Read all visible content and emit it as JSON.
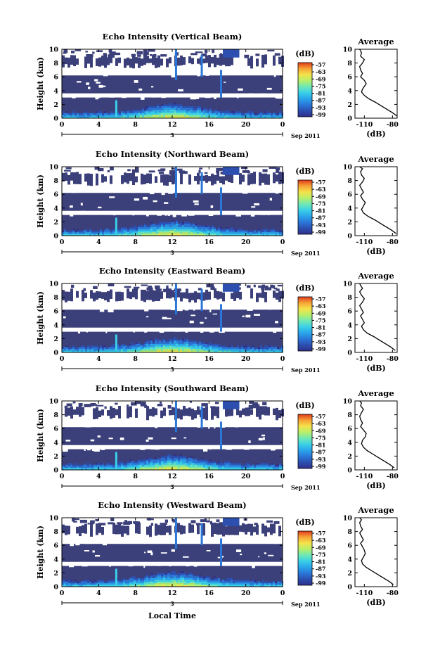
{
  "figure": {
    "x_axis_title": "Local Time",
    "colorbar_ticks": [
      "-57",
      "-63",
      "-69",
      "-75",
      "-81",
      "-87",
      "-93",
      "-99"
    ],
    "colorbar_unit": "(dB)",
    "colors": {
      "fill_dark": "#3b3f7a",
      "background": "#ffffff",
      "colormap": [
        "#30308a",
        "#2c4fb0",
        "#2a77d8",
        "#2aa5ea",
        "#39d0e8",
        "#6fe8b5",
        "#b7ef6b",
        "#f4e34a",
        "#f7a436",
        "#e23a1c"
      ]
    }
  },
  "chart_data": [
    {
      "type": "heatmap",
      "title": "Echo Intensity (Vertical Beam)",
      "ylabel": "Height (km)",
      "x_ticks": [
        "0",
        "4",
        "8",
        "12",
        "16",
        "20",
        "0"
      ],
      "y_ticks": [
        "0",
        "2",
        "4",
        "6",
        "8",
        "10"
      ],
      "xlim": [
        0,
        24
      ],
      "ylim": [
        0,
        10
      ],
      "date_tick": "3",
      "date_label": "Sep 2011",
      "clim": [
        -99,
        -57
      ],
      "profile": {
        "title": "Average",
        "xlabel": "(dB)",
        "x_ticks": [
          "-110",
          "-80"
        ],
        "y_ticks": [
          "0",
          "2",
          "4",
          "6",
          "8",
          "10"
        ],
        "xlim": [
          -120,
          -75
        ],
        "points": [
          [
            -75,
            0.3
          ],
          [
            -80,
            0.8
          ],
          [
            -86,
            1.3
          ],
          [
            -92,
            1.8
          ],
          [
            -98,
            2.3
          ],
          [
            -105,
            2.8
          ],
          [
            -110,
            3.3
          ],
          [
            -113,
            3.8
          ],
          [
            -112,
            4.2
          ],
          [
            -110,
            4.6
          ],
          [
            -108,
            5.0
          ],
          [
            -110,
            5.5
          ],
          [
            -114,
            6.0
          ],
          [
            -112,
            6.5
          ],
          [
            -114,
            7.0
          ],
          [
            -115,
            7.5
          ],
          [
            -112,
            8.0
          ],
          [
            -110,
            8.5
          ],
          [
            -114,
            9.0
          ],
          [
            -113,
            9.5
          ],
          [
            -115,
            10.0
          ]
        ]
      }
    },
    {
      "type": "heatmap",
      "title": "Echo Intensity (Northward Beam)",
      "ylabel": "Height (km)",
      "x_ticks": [
        "0",
        "4",
        "8",
        "12",
        "16",
        "20",
        "0"
      ],
      "y_ticks": [
        "0",
        "2",
        "4",
        "6",
        "8",
        "10"
      ],
      "xlim": [
        0,
        24
      ],
      "ylim": [
        0,
        10
      ],
      "date_tick": "3",
      "date_label": "Sep 2011",
      "clim": [
        -99,
        -57
      ],
      "profile": {
        "title": "Average",
        "xlabel": "(dB)",
        "x_ticks": [
          "-110",
          "-80"
        ],
        "y_ticks": [
          "0",
          "2",
          "4",
          "6",
          "8",
          "10"
        ],
        "xlim": [
          -120,
          -75
        ],
        "points": [
          [
            -76,
            0.3
          ],
          [
            -81,
            0.8
          ],
          [
            -87,
            1.3
          ],
          [
            -93,
            1.8
          ],
          [
            -99,
            2.3
          ],
          [
            -106,
            2.8
          ],
          [
            -111,
            3.3
          ],
          [
            -113,
            3.8
          ],
          [
            -111,
            4.3
          ],
          [
            -109,
            4.8
          ],
          [
            -112,
            5.3
          ],
          [
            -114,
            5.8
          ],
          [
            -111,
            6.3
          ],
          [
            -113,
            6.8
          ],
          [
            -115,
            7.3
          ],
          [
            -112,
            7.8
          ],
          [
            -110,
            8.3
          ],
          [
            -113,
            8.8
          ],
          [
            -114,
            9.3
          ],
          [
            -112,
            9.7
          ],
          [
            -115,
            10.0
          ]
        ]
      }
    },
    {
      "type": "heatmap",
      "title": "Echo Intensity (Eastward Beam)",
      "ylabel": "Height (km)",
      "x_ticks": [
        "0",
        "4",
        "8",
        "12",
        "16",
        "20",
        "0"
      ],
      "y_ticks": [
        "0",
        "2",
        "4",
        "6",
        "8",
        "10"
      ],
      "xlim": [
        0,
        24
      ],
      "ylim": [
        0,
        10
      ],
      "date_tick": "3",
      "date_label": "Sep 2011",
      "clim": [
        -99,
        -57
      ],
      "profile": {
        "title": "Average",
        "xlabel": "(dB)",
        "x_ticks": [
          "-110",
          "-80"
        ],
        "y_ticks": [
          "0",
          "2",
          "4",
          "6",
          "8",
          "10"
        ],
        "xlim": [
          -120,
          -75
        ],
        "points": [
          [
            -77,
            0.3
          ],
          [
            -82,
            0.8
          ],
          [
            -88,
            1.3
          ],
          [
            -94,
            1.8
          ],
          [
            -100,
            2.3
          ],
          [
            -107,
            2.8
          ],
          [
            -111,
            3.3
          ],
          [
            -113,
            3.8
          ],
          [
            -110,
            4.3
          ],
          [
            -112,
            4.8
          ],
          [
            -114,
            5.3
          ],
          [
            -111,
            5.8
          ],
          [
            -113,
            6.3
          ],
          [
            -115,
            6.8
          ],
          [
            -112,
            7.3
          ],
          [
            -110,
            7.8
          ],
          [
            -113,
            8.3
          ],
          [
            -115,
            8.8
          ],
          [
            -112,
            9.3
          ],
          [
            -114,
            9.7
          ],
          [
            -115,
            10.0
          ]
        ]
      }
    },
    {
      "type": "heatmap",
      "title": "Echo Intensity (Southward Beam)",
      "ylabel": "Height (km)",
      "x_ticks": [
        "0",
        "4",
        "8",
        "12",
        "16",
        "20",
        "0"
      ],
      "y_ticks": [
        "0",
        "2",
        "4",
        "6",
        "8",
        "10"
      ],
      "xlim": [
        0,
        24
      ],
      "ylim": [
        0,
        10
      ],
      "date_tick": "3",
      "date_label": "Sep 2011",
      "clim": [
        -99,
        -57
      ],
      "profile": {
        "title": "Average",
        "xlabel": "(dB)",
        "x_ticks": [
          "-110",
          "-80"
        ],
        "y_ticks": [
          "0",
          "2",
          "4",
          "6",
          "8",
          "10"
        ],
        "xlim": [
          -120,
          -75
        ],
        "points": [
          [
            -78,
            0.3
          ],
          [
            -83,
            0.8
          ],
          [
            -89,
            1.3
          ],
          [
            -95,
            1.8
          ],
          [
            -101,
            2.3
          ],
          [
            -107,
            2.8
          ],
          [
            -111,
            3.3
          ],
          [
            -113,
            3.8
          ],
          [
            -112,
            4.3
          ],
          [
            -109,
            4.8
          ],
          [
            -108,
            5.3
          ],
          [
            -111,
            5.8
          ],
          [
            -114,
            6.3
          ],
          [
            -112,
            6.8
          ],
          [
            -114,
            7.3
          ],
          [
            -115,
            7.8
          ],
          [
            -113,
            8.3
          ],
          [
            -111,
            8.8
          ],
          [
            -114,
            9.3
          ],
          [
            -113,
            9.7
          ],
          [
            -115,
            10.0
          ]
        ]
      }
    },
    {
      "type": "heatmap",
      "title": "Echo Intensity (Westward Beam)",
      "ylabel": "Height (km)",
      "x_ticks": [
        "0",
        "4",
        "8",
        "12",
        "16",
        "20",
        "0"
      ],
      "y_ticks": [
        "0",
        "2",
        "4",
        "6",
        "8",
        "10"
      ],
      "xlim": [
        0,
        24
      ],
      "ylim": [
        0,
        10
      ],
      "date_tick": "3",
      "date_label": "Sep 2011",
      "clim": [
        -99,
        -57
      ],
      "profile": {
        "title": "Average",
        "xlabel": "(dB)",
        "x_ticks": [
          "-110",
          "-80"
        ],
        "y_ticks": [
          "0",
          "2",
          "4",
          "6",
          "8",
          "10"
        ],
        "xlim": [
          -120,
          -75
        ],
        "points": [
          [
            -79,
            0.3
          ],
          [
            -84,
            0.8
          ],
          [
            -90,
            1.3
          ],
          [
            -96,
            1.8
          ],
          [
            -102,
            2.3
          ],
          [
            -108,
            2.8
          ],
          [
            -112,
            3.3
          ],
          [
            -113,
            3.8
          ],
          [
            -111,
            4.3
          ],
          [
            -109,
            4.8
          ],
          [
            -110,
            5.3
          ],
          [
            -112,
            5.8
          ],
          [
            -114,
            6.3
          ],
          [
            -111,
            6.8
          ],
          [
            -113,
            7.3
          ],
          [
            -115,
            7.8
          ],
          [
            -112,
            8.3
          ],
          [
            -114,
            8.8
          ],
          [
            -115,
            9.3
          ],
          [
            -113,
            9.7
          ],
          [
            -115,
            10.0
          ]
        ]
      }
    }
  ]
}
